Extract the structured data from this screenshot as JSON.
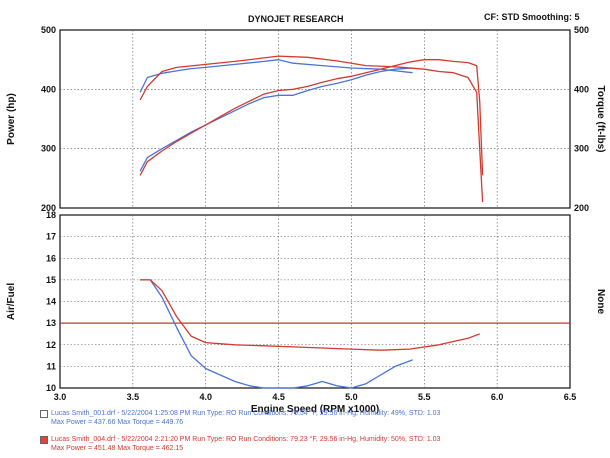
{
  "header": {
    "title": "DYNOJET RESEARCH",
    "cf_smoothing": "CF: STD  Smoothing: 5"
  },
  "legend": [
    {
      "line1": "Lucas Smith_001.drf - 5/22/2004 1:25:08 PM  Run Type: RO  Run Conditions: 79.54 °F, 29.56 in-Hg,  Humidity: 49%,  STD: 1.03",
      "line2": "Max Power = 437.66  Max Torque = 449.76",
      "color": "#4a74d6",
      "swatch_color": "#ffffff"
    },
    {
      "line1": "Lucas Smith_004.drf - 5/22/2004 2:21:20 PM  Run Type: RO  Run Conditions: 79.23 °F, 29.56 in-Hg,  Humidity: 50%,  STD: 1.03",
      "line2": "Max Power = 451.48  Max Torque = 462.15",
      "color": "#d23a2e",
      "swatch_color": "#d9463a"
    }
  ],
  "chart_data": [
    {
      "type": "line",
      "title": "DYNOJET RESEARCH",
      "xlabel": "Engine Speed (RPM x1000)",
      "ylabel": "Power (hp)",
      "ylabel_right": "Torque (ft-lbs)",
      "xlim": [
        3.0,
        6.5
      ],
      "ylim": [
        200,
        500
      ],
      "ylim_right": [
        200,
        500
      ],
      "yticks": [
        200,
        300,
        400,
        500
      ],
      "yticks_right": [
        200,
        300,
        400,
        500
      ],
      "grid": true,
      "series": [
        {
          "color": "#4a74d6",
          "metric": "power",
          "x": [
            3.55,
            3.6,
            3.7,
            3.8,
            3.9,
            4.0,
            4.1,
            4.2,
            4.3,
            4.4,
            4.5,
            4.6,
            4.7,
            4.8,
            4.9,
            5.0,
            5.1,
            5.2,
            5.3,
            5.42
          ],
          "y": [
            262,
            285,
            300,
            314,
            328,
            340,
            352,
            364,
            376,
            386,
            390,
            390,
            398,
            405,
            410,
            416,
            424,
            430,
            434,
            436
          ]
        },
        {
          "color": "#d23a2e",
          "metric": "power",
          "x": [
            3.55,
            3.6,
            3.7,
            3.8,
            3.9,
            4.0,
            4.1,
            4.2,
            4.3,
            4.4,
            4.5,
            4.6,
            4.7,
            4.8,
            4.9,
            5.0,
            5.1,
            5.2,
            5.3,
            5.4,
            5.5,
            5.6,
            5.7,
            5.8,
            5.86,
            5.88,
            5.9
          ],
          "y": [
            255,
            278,
            296,
            312,
            326,
            340,
            354,
            368,
            380,
            392,
            398,
            400,
            405,
            412,
            418,
            422,
            428,
            434,
            440,
            446,
            450,
            450,
            447,
            445,
            440,
            380,
            255
          ]
        },
        {
          "color": "#4a74d6",
          "metric": "torque",
          "x": [
            3.55,
            3.6,
            3.7,
            3.8,
            3.9,
            4.0,
            4.2,
            4.4,
            4.5,
            4.6,
            4.8,
            5.0,
            5.2,
            5.42
          ],
          "y": [
            395,
            420,
            427,
            431,
            435,
            437,
            442,
            447,
            450,
            444,
            440,
            436,
            434,
            428
          ]
        },
        {
          "color": "#d23a2e",
          "metric": "torque",
          "x": [
            3.55,
            3.6,
            3.7,
            3.8,
            4.0,
            4.2,
            4.4,
            4.5,
            4.7,
            4.9,
            5.1,
            5.3,
            5.5,
            5.6,
            5.7,
            5.8,
            5.86,
            5.88,
            5.9
          ],
          "y": [
            382,
            405,
            430,
            437,
            442,
            447,
            453,
            456,
            454,
            448,
            440,
            438,
            434,
            430,
            428,
            420,
            395,
            300,
            210
          ]
        }
      ]
    },
    {
      "type": "line",
      "xlabel": "Engine Speed (RPM x1000)",
      "ylabel": "Air/Fuel",
      "ylabel_right": "None",
      "xlim": [
        3.0,
        6.5
      ],
      "ylim": [
        10,
        18
      ],
      "yticks": [
        10,
        11,
        12,
        13,
        14,
        15,
        16,
        17,
        18
      ],
      "xticks": [
        3.0,
        3.5,
        4.0,
        4.5,
        5.0,
        5.5,
        6.0,
        6.5
      ],
      "grid": true,
      "reference_line": {
        "y": 13.0,
        "color": "#c0392b"
      },
      "series": [
        {
          "color": "#4a74d6",
          "x": [
            3.55,
            3.62,
            3.7,
            3.8,
            3.9,
            4.0,
            4.1,
            4.2,
            4.3,
            4.4,
            4.5,
            4.6,
            4.7,
            4.8,
            4.9,
            5.0,
            5.1,
            5.2,
            5.3,
            5.42
          ],
          "y": [
            15.0,
            15.0,
            14.2,
            12.8,
            11.5,
            10.9,
            10.6,
            10.3,
            10.1,
            10.0,
            10.0,
            10.0,
            10.1,
            10.3,
            10.1,
            10.0,
            10.2,
            10.6,
            11.0,
            11.3
          ]
        },
        {
          "color": "#d23a2e",
          "x": [
            3.55,
            3.62,
            3.7,
            3.8,
            3.9,
            4.0,
            4.2,
            4.4,
            4.6,
            4.8,
            5.0,
            5.2,
            5.4,
            5.6,
            5.8,
            5.88
          ],
          "y": [
            15.0,
            15.0,
            14.5,
            13.3,
            12.4,
            12.1,
            12.0,
            11.95,
            11.9,
            11.85,
            11.8,
            11.75,
            11.8,
            12.0,
            12.3,
            12.5
          ]
        }
      ]
    }
  ]
}
